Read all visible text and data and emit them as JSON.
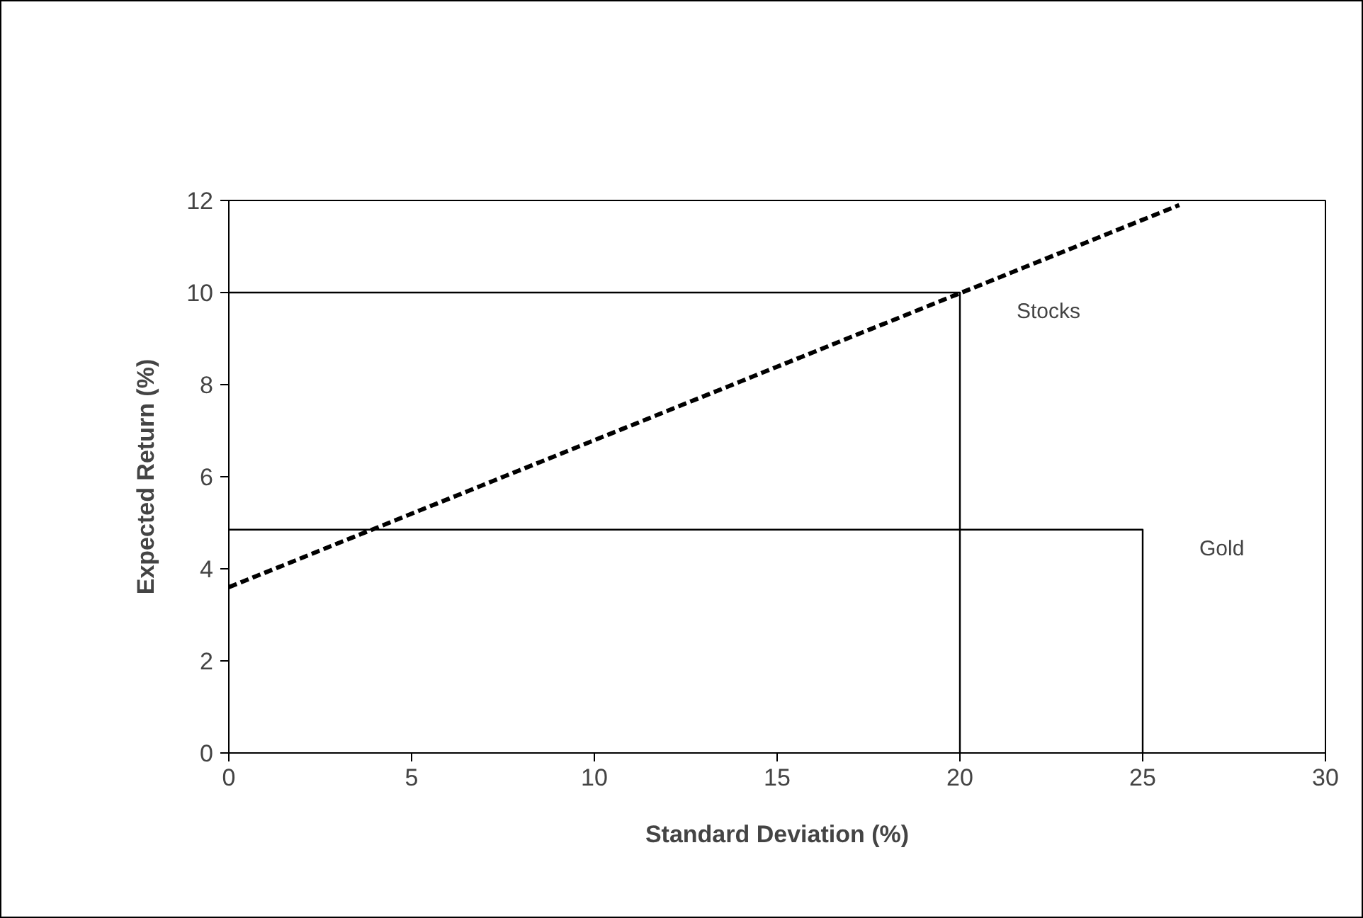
{
  "chart_data": {
    "type": "line",
    "xlabel": "Standard Deviation (%)",
    "ylabel": "Expected Return (%)",
    "series": [
      {
        "color": "#000000",
        "x": [
          0,
          26
        ],
        "values": [
          3.6,
          11.9
        ],
        "line_style": "dashed"
      },
      {
        "color": "#000000",
        "x": [
          0,
          20,
          20
        ],
        "values": [
          10,
          10,
          0
        ],
        "line_style": "solid"
      },
      {
        "color": "#000000",
        "x": [
          0,
          25,
          25
        ],
        "values": [
          4.85,
          4.85,
          0
        ],
        "line_style": "solid"
      }
    ],
    "annotations": [
      {
        "text": "Stocks",
        "x": 20,
        "y": 10
      },
      {
        "text": "Gold",
        "x": 25,
        "y": 4.85
      }
    ],
    "xlim": [
      0,
      30
    ],
    "xticks": [
      0,
      5,
      10,
      15,
      20,
      25,
      30
    ],
    "ylim": [
      0,
      12
    ],
    "yticks": [
      0,
      2,
      4,
      6,
      8,
      10,
      12
    ],
    "grid": false,
    "marker": "none"
  }
}
